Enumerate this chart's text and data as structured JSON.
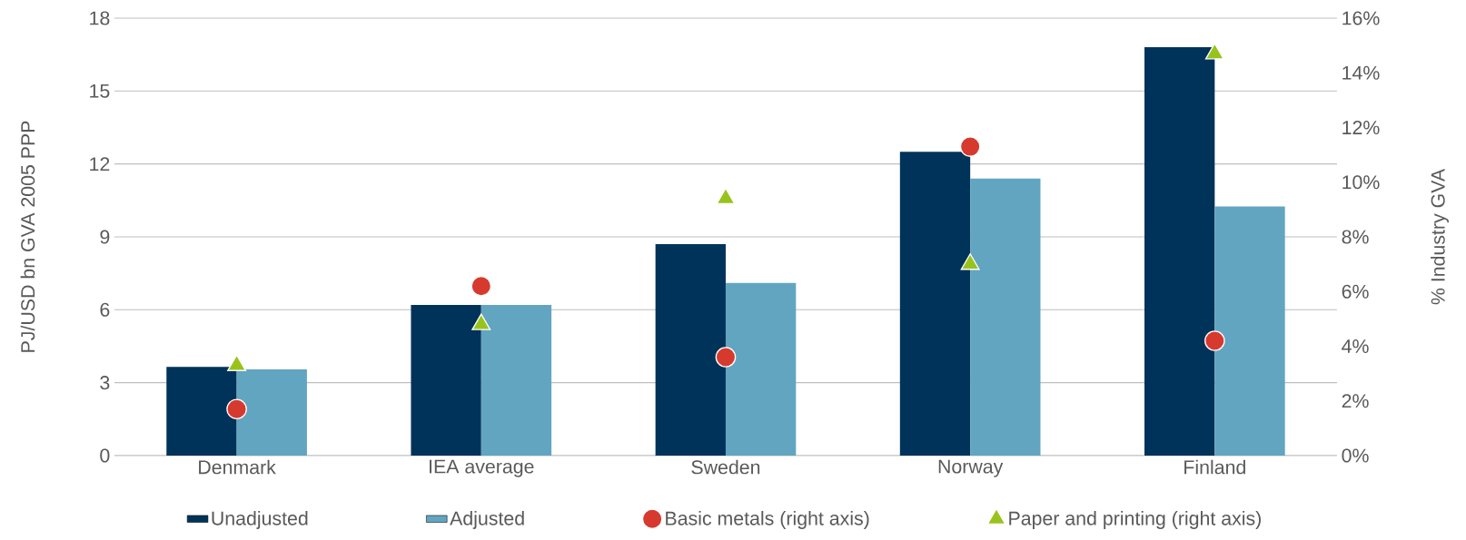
{
  "chart_data": {
    "type": "bar",
    "categories": [
      "Denmark",
      "IEA average",
      "Sweden",
      "Norway",
      "Finland"
    ],
    "series": [
      {
        "name": "Unadjusted",
        "color": "#003359",
        "values": [
          3.65,
          6.2,
          8.7,
          12.5,
          16.8
        ]
      },
      {
        "name": "Adjusted",
        "color": "#62a5c1",
        "values": [
          3.55,
          6.2,
          7.1,
          11.4,
          10.25
        ]
      },
      {
        "name": "Basic metals (right axis)",
        "type": "scatter",
        "axis": "y2",
        "marker": "circle",
        "color": "#d63a2f",
        "values": [
          1.7,
          6.2,
          3.6,
          11.3,
          4.2
        ]
      },
      {
        "name": "Paper and printing (right axis)",
        "type": "scatter",
        "axis": "y2",
        "marker": "triangle",
        "color": "#99c31c",
        "values": [
          3.3,
          4.8,
          9.4,
          7.0,
          14.7
        ]
      }
    ],
    "ylabel": "PJ/USD bn GVA 2005 PPP",
    "y2label": "% Industry GVA",
    "ylim": [
      0,
      18
    ],
    "yticks": [
      0,
      3,
      6,
      9,
      12,
      15,
      18
    ],
    "y2lim": [
      0,
      16
    ],
    "y2ticks": [
      {
        "value": 0,
        "label": "0%"
      },
      {
        "value": 2,
        "label": "2%"
      },
      {
        "value": 4,
        "label": "4%"
      },
      {
        "value": 6,
        "label": "6%"
      },
      {
        "value": 8,
        "label": "8%"
      },
      {
        "value": 10,
        "label": "10%"
      },
      {
        "value": 12,
        "label": "12%"
      },
      {
        "value": 14,
        "label": "14%"
      },
      {
        "value": 16,
        "label": "16%"
      }
    ],
    "grid": "y",
    "legend": "bottom"
  }
}
